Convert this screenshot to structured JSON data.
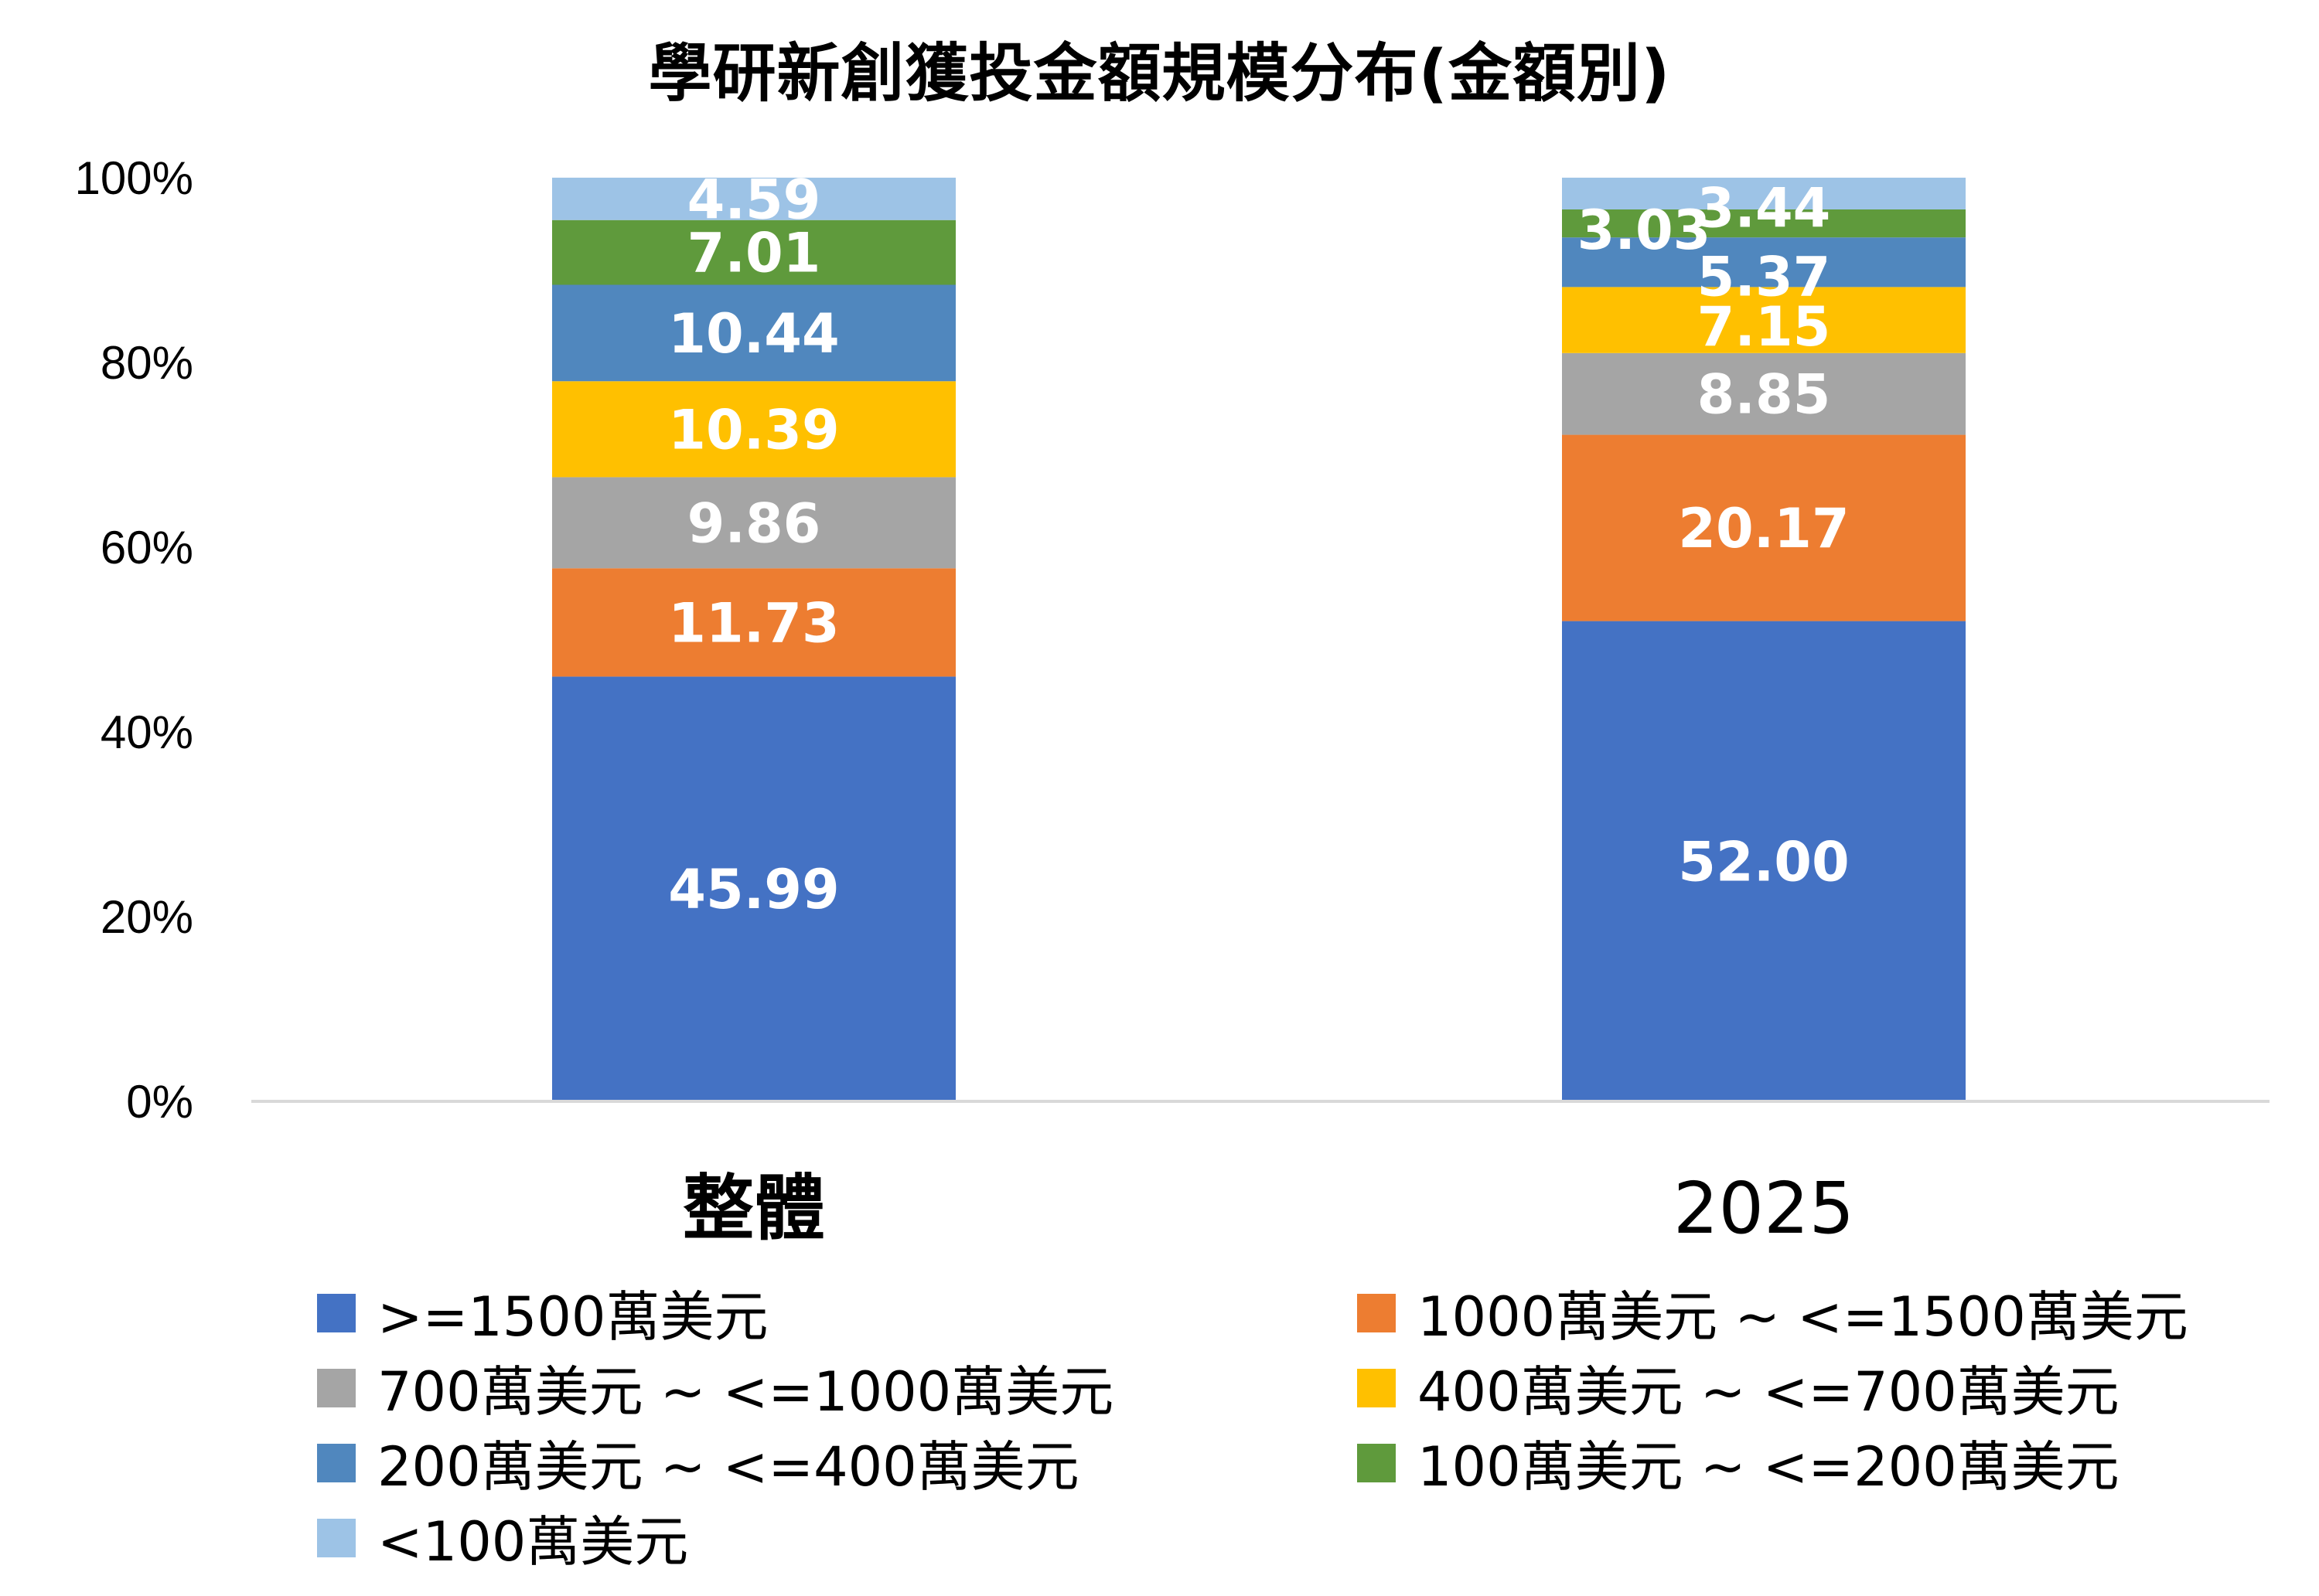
{
  "chart_data": {
    "type": "bar",
    "stacked": true,
    "percent": true,
    "title": "學研新創獲投金額規模分布(金額別)",
    "categories": [
      "整體",
      "2025"
    ],
    "ylim": [
      0,
      100
    ],
    "yticks": [
      "0%",
      "20%",
      "40%",
      "60%",
      "80%",
      "100%"
    ],
    "grid": false,
    "legend_position": "bottom",
    "series": [
      {
        "name": ">=1500萬美元",
        "color": "#4472C4",
        "values": [
          45.99,
          52.0
        ],
        "labels": [
          "45.99",
          "52.00"
        ]
      },
      {
        "name": "1000萬美元 ~ <=1500萬美元",
        "color": "#ED7D31",
        "values": [
          11.73,
          20.17
        ],
        "labels": [
          "11.73",
          "20.17"
        ]
      },
      {
        "name": "700萬美元 ~ <=1000萬美元",
        "color": "#A5A5A5",
        "values": [
          9.86,
          8.85
        ],
        "labels": [
          "9.86",
          "8.85"
        ]
      },
      {
        "name": "400萬美元 ~ <=700萬美元",
        "color": "#FFC000",
        "values": [
          10.39,
          7.15
        ],
        "labels": [
          "10.39",
          "7.15"
        ]
      },
      {
        "name": "200萬美元 ~ <=400萬美元",
        "color": "#5087BE",
        "values": [
          10.44,
          5.37
        ],
        "labels": [
          "10.44",
          "5.37"
        ]
      },
      {
        "name": "100萬美元 ~ <=200萬美元",
        "color": "#5F9A3C",
        "values": [
          7.01,
          3.03
        ],
        "labels": [
          "7.01",
          "3.03"
        ]
      },
      {
        "name": "<100萬美元",
        "color": "#9DC3E6",
        "values": [
          4.59,
          3.44
        ],
        "labels": [
          "4.59",
          "3.44"
        ]
      }
    ]
  }
}
